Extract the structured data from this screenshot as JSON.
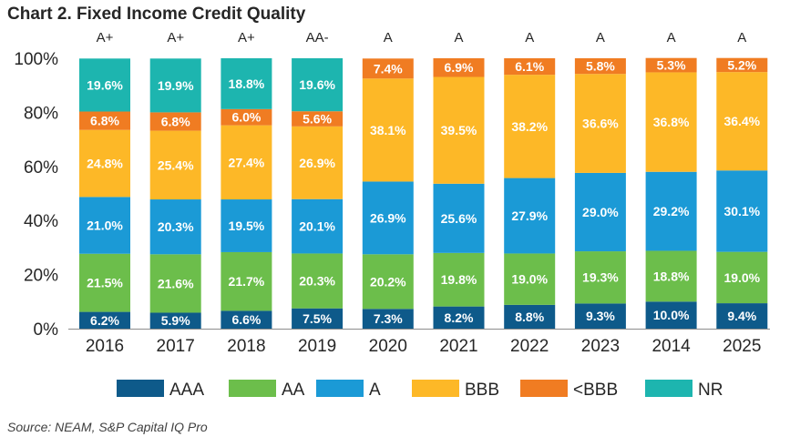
{
  "title": "Chart 2. Fixed Income Credit Quality",
  "source": "Source: NEAM, S&P Capital IQ Pro",
  "chart_data": {
    "type": "bar",
    "stacked": true,
    "categories": [
      "2016",
      "2017",
      "2018",
      "2019",
      "2020",
      "2021",
      "2022",
      "2023",
      "2014",
      "2025"
    ],
    "ratings": [
      "A+",
      "A+",
      "A+",
      "AA-",
      "A",
      "A",
      "A",
      "A",
      "A",
      "A"
    ],
    "yticks": [
      "0%",
      "20%",
      "40%",
      "60%",
      "80%",
      "100%"
    ],
    "ylim": [
      0,
      100
    ],
    "legend_position": "bottom",
    "grid": false,
    "series": [
      {
        "name": "AAA",
        "color": "#0E5A8A",
        "values": [
          6.2,
          5.9,
          6.6,
          7.5,
          7.3,
          8.2,
          8.8,
          9.3,
          10.0,
          9.4
        ]
      },
      {
        "name": "AA",
        "color": "#6CBE4B",
        "values": [
          21.5,
          21.6,
          21.7,
          20.3,
          20.2,
          19.8,
          19.0,
          19.3,
          18.8,
          19.0
        ]
      },
      {
        "name": "A",
        "color": "#1B9AD6",
        "values": [
          21.0,
          20.3,
          19.5,
          20.1,
          26.9,
          25.6,
          27.9,
          29.0,
          29.2,
          30.1
        ]
      },
      {
        "name": "BBB",
        "color": "#FDB827",
        "values": [
          24.8,
          25.4,
          27.4,
          26.9,
          38.1,
          39.5,
          38.2,
          36.6,
          36.8,
          36.4
        ]
      },
      {
        "name": "<BBB",
        "color": "#F07C22",
        "values": [
          6.8,
          6.8,
          6.0,
          5.6,
          7.4,
          6.9,
          6.1,
          5.8,
          5.3,
          5.2
        ]
      },
      {
        "name": "NR",
        "color": "#1DB5AF",
        "values": [
          19.6,
          19.9,
          18.8,
          19.6,
          0,
          0,
          0,
          0,
          0,
          0
        ]
      }
    ]
  }
}
